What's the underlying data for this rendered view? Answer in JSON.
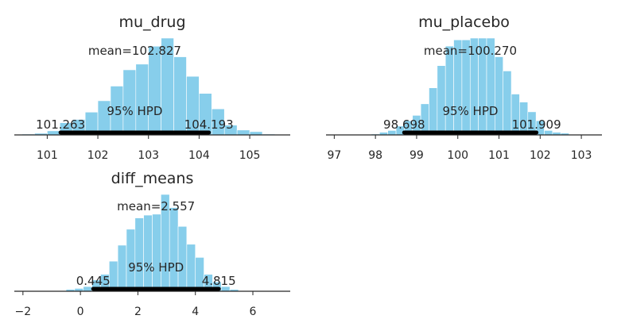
{
  "chart_data": [
    {
      "type": "histogram",
      "title": "mu_drug",
      "mean_label": "mean=102.827",
      "hpd_label": "95% HPD",
      "hpd": [
        101.263,
        104.193
      ],
      "hpd_labels": [
        "101.263",
        "104.193"
      ],
      "xlim": [
        100.35,
        105.8
      ],
      "xticks": [
        101,
        102,
        103,
        104,
        105
      ],
      "xtick_labels": [
        "101",
        "102",
        "103",
        "104",
        "105"
      ],
      "bin_edges": [
        100.5,
        100.75,
        101.0,
        101.25,
        101.5,
        101.75,
        102.0,
        102.25,
        102.5,
        102.75,
        103.0,
        103.25,
        103.5,
        103.75,
        104.0,
        104.25,
        104.5,
        104.75,
        105.0,
        105.25,
        105.5
      ],
      "counts": [
        1,
        2,
        5,
        15,
        19,
        28,
        42,
        60,
        80,
        87,
        109,
        119,
        96,
        72,
        51,
        32,
        12,
        6,
        4,
        1
      ],
      "bar_color": "#87ceeb",
      "hpd_color": "#000000"
    },
    {
      "type": "histogram",
      "title": "mu_placebo",
      "mean_label": "mean=100.270",
      "hpd_label": "95% HPD",
      "hpd": [
        98.698,
        101.909
      ],
      "hpd_labels": [
        "98.698",
        "101.909"
      ],
      "xlim": [
        96.8,
        103.5
      ],
      "xticks": [
        97,
        98,
        99,
        100,
        101,
        102,
        103
      ],
      "xtick_labels": [
        "97",
        "98",
        "99",
        "100",
        "101",
        "102",
        "103"
      ],
      "bin_edges": [
        97.9,
        98.1,
        98.3,
        98.5,
        98.7,
        98.9,
        99.1,
        99.3,
        99.5,
        99.7,
        99.9,
        100.1,
        100.3,
        100.5,
        100.7,
        100.9,
        101.1,
        101.3,
        101.5,
        101.7,
        101.9,
        102.1,
        102.3,
        102.5,
        102.7
      ],
      "counts": [
        1,
        3,
        5,
        10,
        16,
        22,
        35,
        53,
        78,
        100,
        107,
        107,
        109,
        109,
        109,
        88,
        72,
        46,
        37,
        26,
        16,
        5,
        3,
        2
      ],
      "bar_color": "#87ceeb",
      "hpd_color": "#000000"
    },
    {
      "type": "histogram",
      "title": "diff_means",
      "mean_label": "mean=2.557",
      "hpd_label": "95% HPD",
      "hpd": [
        0.445,
        4.815
      ],
      "hpd_labels": [
        "0.445",
        "4.815"
      ],
      "xlim": [
        -2.3,
        7.3
      ],
      "xticks": [
        -2,
        0,
        2,
        4,
        6
      ],
      "xtick_labels": [
        "−2",
        "0",
        "2",
        "4",
        "6"
      ],
      "bin_edges": [
        -0.5,
        -0.2,
        0.1,
        0.4,
        0.7,
        1.0,
        1.3,
        1.6,
        1.9,
        2.2,
        2.5,
        2.8,
        3.1,
        3.4,
        3.7,
        4.0,
        4.3,
        4.6,
        4.9,
        5.2,
        5.5
      ],
      "counts": [
        2,
        3,
        5,
        12,
        18,
        32,
        49,
        66,
        78,
        81,
        82,
        103,
        89,
        69,
        50,
        36,
        18,
        10,
        5,
        2
      ],
      "bar_color": "#87ceeb",
      "hpd_color": "#000000"
    }
  ]
}
